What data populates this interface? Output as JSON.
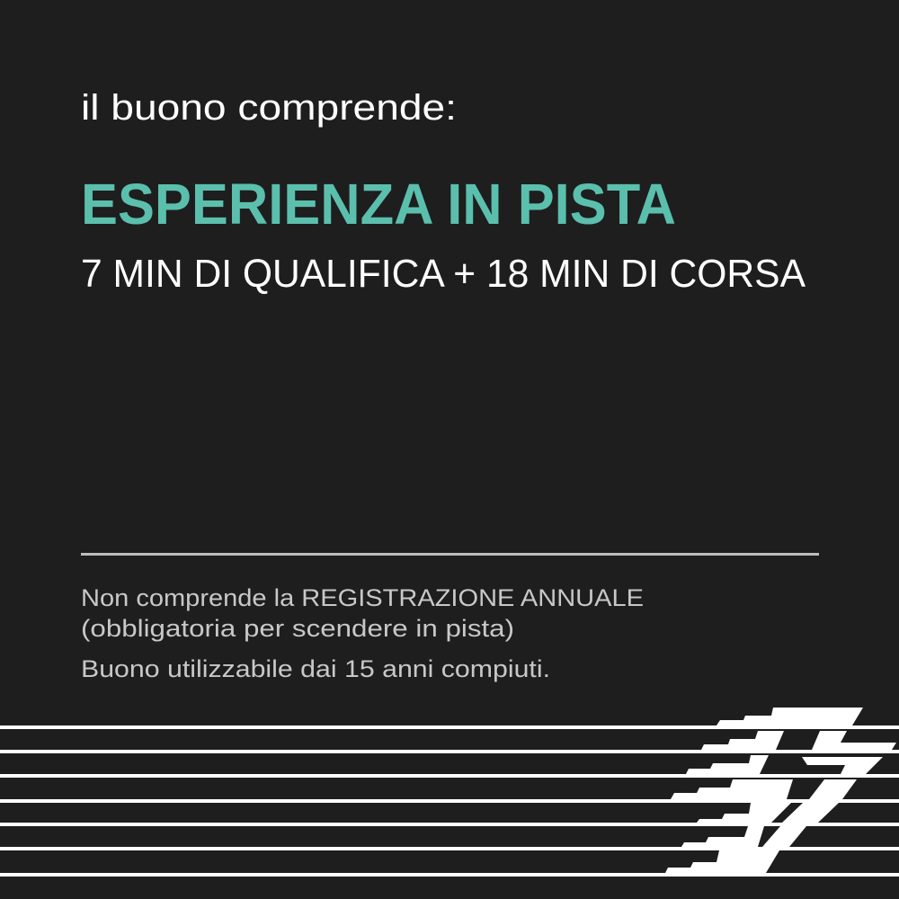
{
  "intro": "il buono comprende:",
  "headline": "ESPERIENZA IN PISTA",
  "subheadline": "7 MIN DI QUALIFICA + 18 MIN DI CORSA",
  "notes": [
    "Non comprende la REGISTRAZIONE ANNUALE",
    "(obbligatoria per scendere in pista)",
    "Buono utilizzabile dai 15 anni compiuti."
  ],
  "colors": {
    "background": "#1e1e1e",
    "accent": "#5bbfad",
    "text": "#ffffff",
    "muted_text": "#c8c8c8"
  },
  "logo": "striped-racing-logo"
}
